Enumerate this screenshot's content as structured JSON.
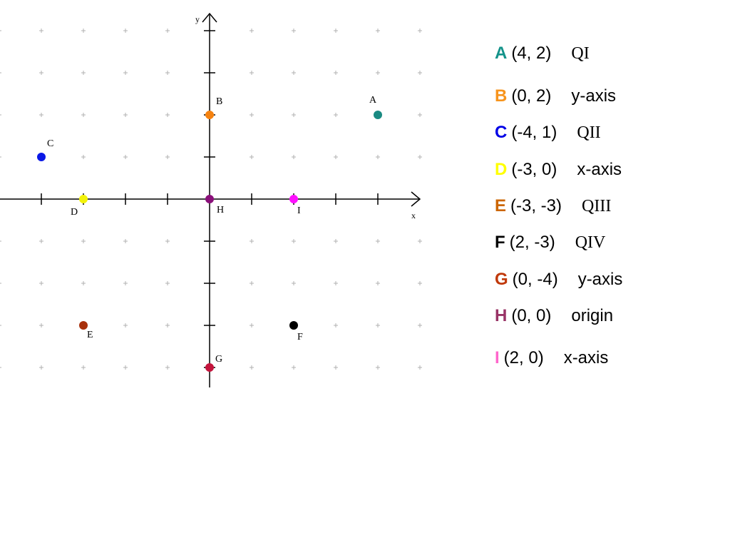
{
  "axes": {
    "x_label": "x",
    "y_label": "y"
  },
  "points": [
    {
      "name": "A",
      "x": 4,
      "y": 2,
      "color": "#1a8a82",
      "coords": "(4, 2)",
      "location": "QI",
      "quadrant": true
    },
    {
      "name": "B",
      "x": 0,
      "y": 2,
      "color": "#f5820f",
      "coords": "(0, 2)",
      "location": "y-axis",
      "quadrant": false
    },
    {
      "name": "C",
      "x": -4,
      "y": 1,
      "color": "#0a18e6",
      "coords": "(-4, 1)",
      "location": "QII",
      "quadrant": true
    },
    {
      "name": "D",
      "x": -3,
      "y": 0,
      "color": "#f2f20a",
      "coords": "(-3, 0)",
      "location": "x-axis",
      "quadrant": false
    },
    {
      "name": "E",
      "x": -3,
      "y": -3,
      "color": "#a8300c",
      "coords": "(-3, -3)",
      "location": "QIII",
      "quadrant": true
    },
    {
      "name": "F",
      "x": 2,
      "y": -3,
      "color": "#000000",
      "coords": "(2, -3)",
      "location": "QIV",
      "quadrant": true
    },
    {
      "name": "G",
      "x": 0,
      "y": -4,
      "color": "#c4143c",
      "coords": "(0, -4)",
      "location": "y-axis",
      "quadrant": false
    },
    {
      "name": "H",
      "x": 0,
      "y": 0,
      "color": "#8a0f7a",
      "coords": "(0, 0)",
      "location": "origin",
      "quadrant": false
    },
    {
      "name": "I",
      "x": 2,
      "y": 0,
      "color": "#ff10ff",
      "coords": "(2, 0)",
      "location": "x-axis",
      "quadrant": false
    }
  ],
  "legend_colors": {
    "A": "#14938a",
    "B": "#f7941d",
    "C": "#0000e6",
    "D": "#ffff00",
    "E": "#cc6600",
    "F": "#000000",
    "G": "#c0390b",
    "H": "#993366",
    "I": "#ff66cc"
  }
}
